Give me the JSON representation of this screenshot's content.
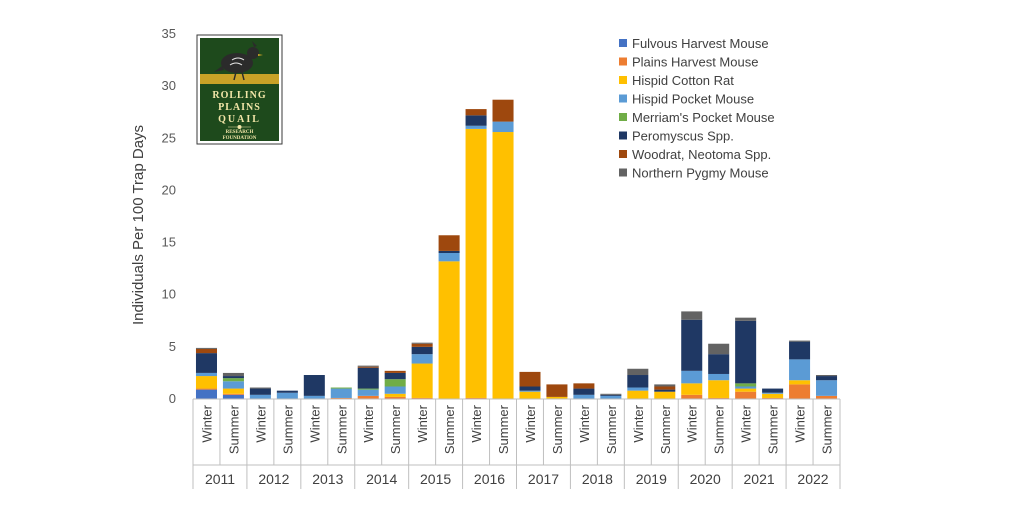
{
  "chart_data": {
    "type": "bar",
    "stacked": true,
    "ylabel": "Individuals Per 100 Trap Days",
    "ylim": [
      0,
      35
    ],
    "yticks": [
      0,
      5,
      10,
      15,
      20,
      25,
      30,
      35
    ],
    "grid": false,
    "legend_position": "top-right",
    "years": [
      "2011",
      "2012",
      "2013",
      "2014",
      "2015",
      "2016",
      "2017",
      "2018",
      "2019",
      "2020",
      "2021",
      "2022"
    ],
    "seasons": [
      "Winter",
      "Summer"
    ],
    "categories": [
      "2011 Winter",
      "2011 Summer",
      "2012 Winter",
      "2012 Summer",
      "2013 Winter",
      "2013 Summer",
      "2014 Winter",
      "2014 Summer",
      "2015 Winter",
      "2015 Summer",
      "2016 Winter",
      "2016 Summer",
      "2017 Winter",
      "2017 Summer",
      "2018 Winter",
      "2018 Summer",
      "2019 Winter",
      "2019 Summer",
      "2020 Winter",
      "2020 Summer",
      "2021 Winter",
      "2021 Summer",
      "2022 Winter",
      "2022 Summer"
    ],
    "series": [
      {
        "name": "Fulvous Harvest Mouse",
        "color": "#4472c4",
        "values": [
          0.9,
          0.4,
          0.0,
          0.0,
          0.0,
          0.0,
          0.0,
          0.0,
          0.0,
          0.0,
          0.0,
          0.0,
          0.0,
          0.0,
          0.0,
          0.0,
          0.0,
          0.0,
          0.0,
          0.0,
          0.0,
          0.0,
          0.0,
          0.0
        ]
      },
      {
        "name": "Plains Harvest Mouse",
        "color": "#ed7d31",
        "values": [
          0.1,
          0.1,
          0.0,
          0.0,
          0.0,
          0.1,
          0.3,
          0.2,
          0.1,
          0.0,
          0.1,
          0.0,
          0.0,
          0.0,
          0.0,
          0.0,
          0.0,
          0.0,
          0.4,
          0.1,
          0.7,
          0.1,
          1.4,
          0.3
        ]
      },
      {
        "name": "Hispid Cotton Rat",
        "color": "#ffc000",
        "values": [
          1.2,
          0.5,
          0.0,
          0.0,
          0.0,
          0.0,
          0.0,
          0.3,
          3.3,
          13.2,
          25.8,
          25.6,
          0.7,
          0.2,
          0.0,
          0.0,
          0.8,
          0.7,
          1.1,
          1.7,
          0.3,
          0.4,
          0.4,
          0.0
        ]
      },
      {
        "name": "Hispid Pocket Mouse",
        "color": "#5b9bd5",
        "values": [
          0.3,
          0.7,
          0.4,
          0.6,
          0.3,
          0.9,
          0.6,
          0.7,
          0.9,
          0.8,
          0.3,
          1.0,
          0.1,
          0.0,
          0.4,
          0.3,
          0.3,
          0.0,
          1.2,
          0.6,
          0.2,
          0.1,
          2.0,
          1.5
        ]
      },
      {
        "name": "Merriam's Pocket Mouse",
        "color": "#70ad47",
        "values": [
          0.0,
          0.3,
          0.0,
          0.0,
          0.0,
          0.1,
          0.1,
          0.7,
          0.0,
          0.0,
          0.0,
          0.0,
          0.0,
          0.0,
          0.0,
          0.0,
          0.0,
          0.0,
          0.0,
          0.0,
          0.3,
          0.0,
          0.0,
          0.0
        ]
      },
      {
        "name": "Peromyscus Spp.",
        "color": "#1f3864",
        "values": [
          1.9,
          0.2,
          0.6,
          0.2,
          2.0,
          0.0,
          2.0,
          0.6,
          0.7,
          0.2,
          1.0,
          0.0,
          0.4,
          0.0,
          0.6,
          0.1,
          1.2,
          0.2,
          4.9,
          1.9,
          6.0,
          0.4,
          1.7,
          0.4
        ]
      },
      {
        "name": "Woodrat, Neotoma Spp.",
        "color": "#9e480e",
        "values": [
          0.4,
          0.0,
          0.0,
          0.0,
          0.0,
          0.0,
          0.1,
          0.2,
          0.3,
          1.5,
          0.6,
          2.1,
          1.4,
          1.2,
          0.5,
          0.0,
          0.0,
          0.3,
          0.0,
          0.0,
          0.0,
          0.0,
          0.0,
          0.0
        ]
      },
      {
        "name": "Northern Pygmy Mouse",
        "color": "#636363",
        "values": [
          0.1,
          0.3,
          0.1,
          0.0,
          0.0,
          0.0,
          0.1,
          0.0,
          0.1,
          0.0,
          0.0,
          0.0,
          0.0,
          0.0,
          0.0,
          0.1,
          0.6,
          0.2,
          0.8,
          1.0,
          0.3,
          0.0,
          0.1,
          0.1
        ]
      }
    ]
  },
  "logo": {
    "line1": "ROLLING",
    "line2": "PLAINS",
    "line3": "QUAIL",
    "line4": "RESEARCH",
    "line5": "FOUNDATION"
  }
}
